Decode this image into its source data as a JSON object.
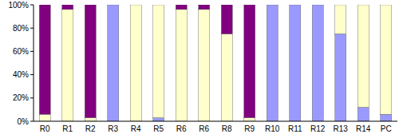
{
  "chart_data": {
    "type": "bar",
    "stacked": true,
    "categories": [
      "R0",
      "R1",
      "R2",
      "R3",
      "R4",
      "R5",
      "R6",
      "R6",
      "R8",
      "R9",
      "R10",
      "R11",
      "R12",
      "R13",
      "R14",
      "PC"
    ],
    "series": [
      {
        "color": "#9999ff",
        "values": [
          0,
          0,
          0,
          100,
          0,
          3,
          0,
          0,
          0,
          0,
          100,
          100,
          100,
          75,
          12,
          6
        ]
      },
      {
        "color": "#ffffcc",
        "values": [
          6,
          96,
          3,
          0,
          100,
          97,
          96,
          96,
          75,
          3,
          0,
          0,
          0,
          25,
          88,
          94
        ]
      },
      {
        "color": "#800080",
        "values": [
          94,
          4,
          97,
          0,
          0,
          0,
          4,
          4,
          25,
          97,
          0,
          0,
          0,
          0,
          0,
          0
        ]
      }
    ],
    "ylim": [
      0,
      100
    ],
    "yticks": [
      {
        "value": 0,
        "label": "0%"
      },
      {
        "value": 20,
        "label": "20%"
      },
      {
        "value": 40,
        "label": "40%"
      },
      {
        "value": 60,
        "label": "60%"
      },
      {
        "value": 80,
        "label": "80%"
      },
      {
        "value": 100,
        "label": "100%"
      }
    ],
    "grid": false
  }
}
